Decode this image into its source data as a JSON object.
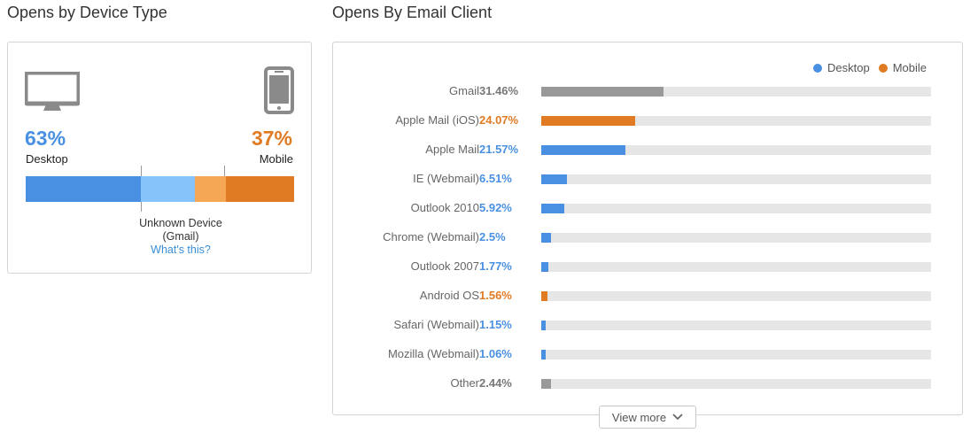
{
  "device_section": {
    "title": "Opens by Device Type",
    "desktop_pct": "63%",
    "desktop_label": "Desktop",
    "mobile_pct": "37%",
    "mobile_label": "Mobile",
    "unknown_label_line1": "Unknown Device",
    "unknown_label_line2": "(Gmail)",
    "whats_this": "What's this?",
    "icons": {
      "desktop": "monitor-icon",
      "mobile": "phone-icon"
    },
    "bar_segments": [
      {
        "name": "desktop",
        "fraction": 0.43,
        "color": "#4a90e2"
      },
      {
        "name": "unknown-desktop",
        "fraction": 0.2,
        "color": "#86c3fb"
      },
      {
        "name": "unknown-mobile",
        "fraction": 0.115,
        "color": "#f6a756"
      },
      {
        "name": "mobile",
        "fraction": 0.255,
        "color": "#e07b24"
      }
    ]
  },
  "client_section": {
    "title": "Opens By Email Client",
    "legend": [
      {
        "label": "Desktop",
        "color": "#4a90e2"
      },
      {
        "label": "Mobile",
        "color": "#e07b24"
      }
    ],
    "clients": [
      {
        "name": "Gmail",
        "pct": "31.46%",
        "value": 31.46,
        "kind": "other"
      },
      {
        "name": "Apple Mail (iOS)",
        "pct": "24.07%",
        "value": 24.07,
        "kind": "mobile"
      },
      {
        "name": "Apple Mail",
        "pct": "21.57%",
        "value": 21.57,
        "kind": "desktop"
      },
      {
        "name": "IE (Webmail)",
        "pct": "6.51%",
        "value": 6.51,
        "kind": "desktop"
      },
      {
        "name": "Outlook 2010",
        "pct": "5.92%",
        "value": 5.92,
        "kind": "desktop"
      },
      {
        "name": "Chrome (Webmail)",
        "pct": "2.5%",
        "value": 2.5,
        "kind": "desktop"
      },
      {
        "name": "Outlook 2007",
        "pct": "1.77%",
        "value": 1.77,
        "kind": "desktop"
      },
      {
        "name": "Android OS",
        "pct": "1.56%",
        "value": 1.56,
        "kind": "mobile"
      },
      {
        "name": "Safari (Webmail)",
        "pct": "1.15%",
        "value": 1.15,
        "kind": "desktop"
      },
      {
        "name": "Mozilla (Webmail)",
        "pct": "1.06%",
        "value": 1.06,
        "kind": "desktop"
      },
      {
        "name": "Other",
        "pct": "2.44%",
        "value": 2.44,
        "kind": "other"
      }
    ],
    "view_more": "View more",
    "colors": {
      "desktop": "#4a90e2",
      "mobile": "#e07b24",
      "other": "#999999",
      "other_text": "#777777"
    }
  }
}
